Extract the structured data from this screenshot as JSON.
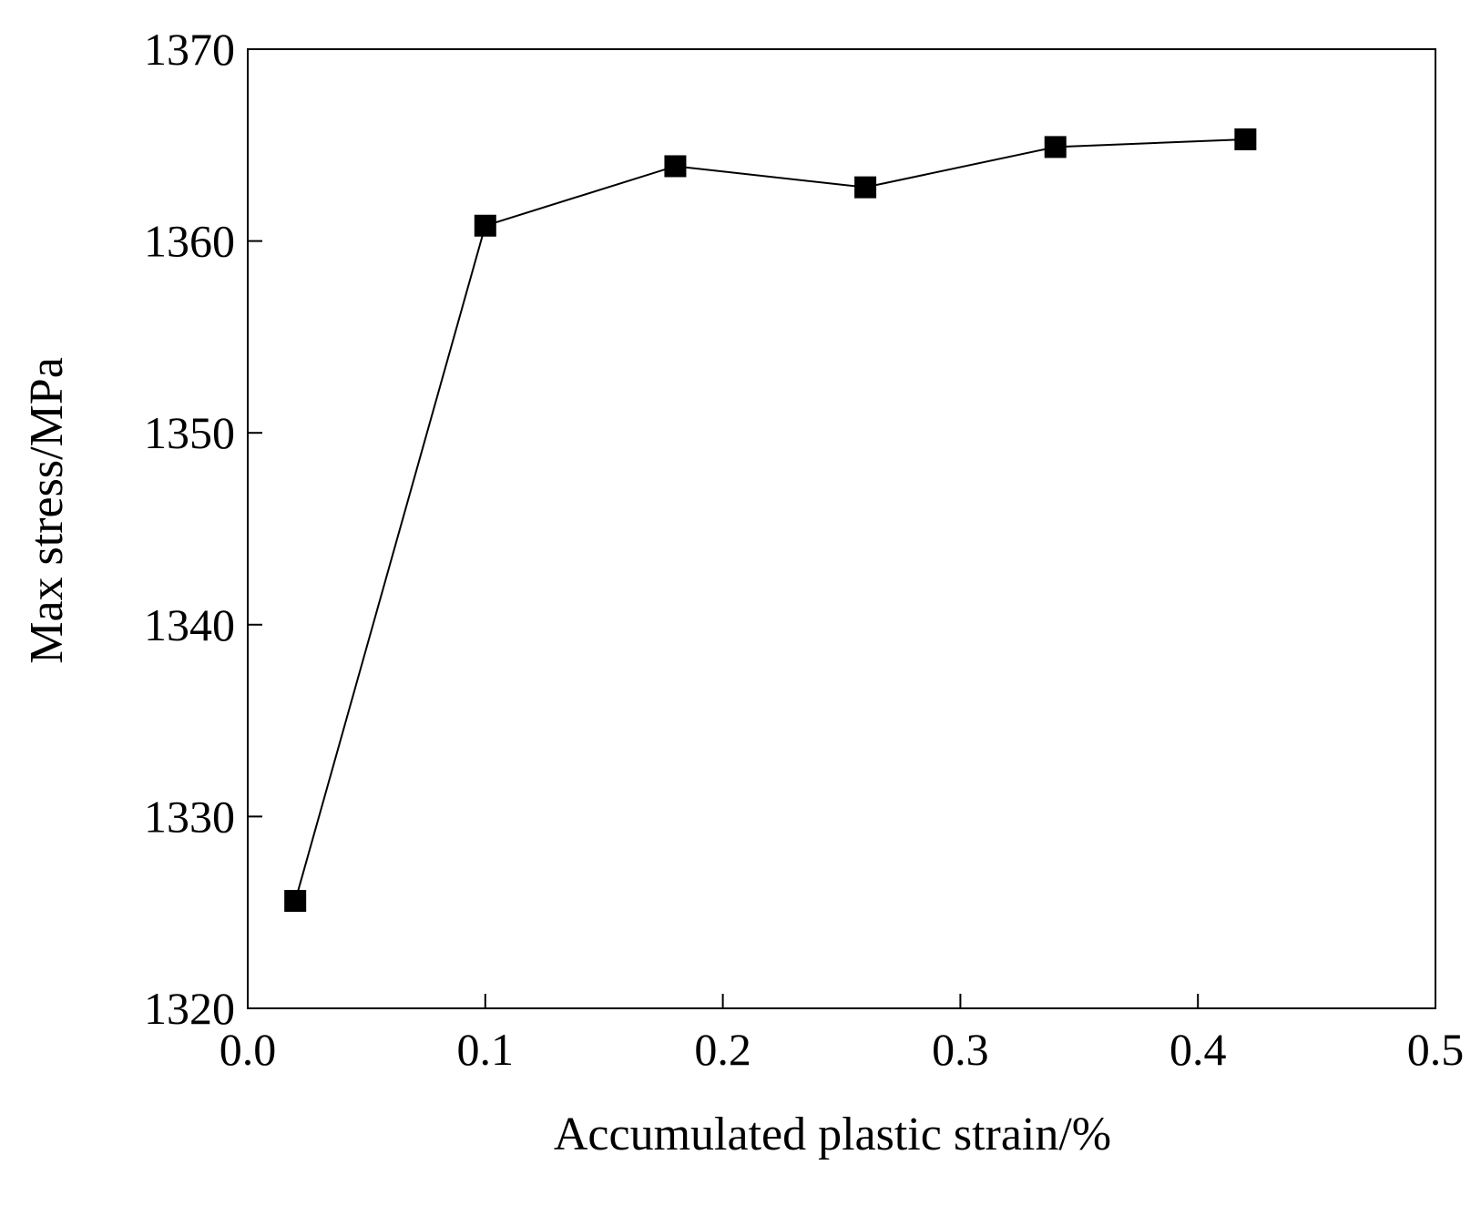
{
  "chart_data": {
    "type": "line",
    "title": "",
    "xlabel": "Accumulated plastic strain/%",
    "ylabel": "Max stress/MPa",
    "xlim": [
      0.0,
      0.5
    ],
    "ylim": [
      1320,
      1370
    ],
    "xticks": [
      "0.0",
      "0.1",
      "0.2",
      "0.3",
      "0.4",
      "0.5"
    ],
    "yticks": [
      "1320",
      "1330",
      "1340",
      "1350",
      "1360",
      "1370"
    ],
    "grid": false,
    "marker": "square",
    "line_color": "#000000",
    "marker_color": "#000000",
    "series": [
      {
        "x": [
          0.02,
          0.1,
          0.18,
          0.26,
          0.34,
          0.42
        ],
        "y": [
          1325.6,
          1360.8,
          1363.9,
          1362.8,
          1364.9,
          1365.3
        ]
      }
    ]
  }
}
